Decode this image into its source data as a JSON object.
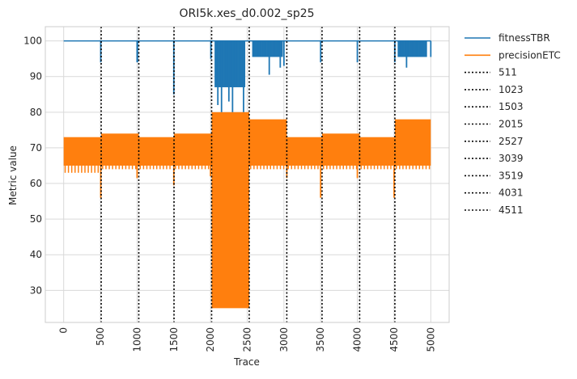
{
  "chart_data": {
    "type": "line",
    "title": "ORI5k.xes_d0.002_sp25",
    "xlabel": "Trace",
    "ylabel": "Metric value",
    "xlim": [
      -250,
      5250
    ],
    "ylim": [
      21,
      104
    ],
    "xticks": [
      0,
      500,
      1000,
      1500,
      2000,
      2500,
      3000,
      3500,
      4000,
      4500,
      5000
    ],
    "yticks": [
      30,
      40,
      50,
      60,
      70,
      80,
      90,
      100
    ],
    "grid": true,
    "legend_position": "outside-right",
    "colors": {
      "fitnessTBR": "#1f77b4",
      "precisionETC": "#ff7f0e",
      "vlines": "#000000"
    },
    "series": [
      {
        "name": "fitnessTBR",
        "segments": [
          {
            "x_range": [
              0,
              511
            ],
            "base": 100,
            "dips": [
              [
                505,
                94
              ]
            ]
          },
          {
            "x_range": [
              511,
              1023
            ],
            "base": 100,
            "dips": [
              [
                1000,
                94
              ],
              [
                1005,
                94
              ]
            ]
          },
          {
            "x_range": [
              1023,
              1503
            ],
            "base": 100,
            "dips": [
              [
                1500,
                85
              ]
            ]
          },
          {
            "x_range": [
              1503,
              2015
            ],
            "base": 100,
            "dips": [
              [
                2005,
                95
              ]
            ]
          },
          {
            "x_range": [
              2015,
              2527
            ],
            "base": 100,
            "dense_band": [
              87,
              100
            ],
            "dips": [
              [
                2100,
                82
              ],
              [
                2150,
                80
              ],
              [
                2250,
                83
              ],
              [
                2300,
                80
              ],
              [
                2450,
                80
              ]
            ]
          },
          {
            "x_range": [
              2527,
              3039
            ],
            "base": 100,
            "dense_band": [
              95.5,
              100
            ],
            "dips": [
              [
                2800,
                90.5
              ],
              [
                2950,
                92.5
              ],
              [
                3000,
                93
              ]
            ]
          },
          {
            "x_range": [
              3039,
              3519
            ],
            "base": 100,
            "dips": [
              [
                3500,
                94
              ]
            ]
          },
          {
            "x_range": [
              3519,
              4031
            ],
            "base": 100,
            "dips": [
              [
                4000,
                94
              ]
            ]
          },
          {
            "x_range": [
              4031,
              4511
            ],
            "base": 100,
            "dips": [
              [
                4510,
                94
              ]
            ]
          },
          {
            "x_range": [
              4511,
              5000
            ],
            "base": 100,
            "dense_band": [
              95.5,
              100
            ],
            "dips": [
              [
                4670,
                92.5
              ],
              [
                5000,
                95.5
              ]
            ]
          }
        ]
      },
      {
        "name": "precisionETC",
        "segments": [
          {
            "x_range": [
              0,
              511
            ],
            "band": [
              65,
              73
            ],
            "low": 63,
            "dips": [
              [
                505,
                56
              ]
            ]
          },
          {
            "x_range": [
              511,
              1023
            ],
            "band": [
              65,
              74
            ],
            "low": 64,
            "dips": [
              [
                1000,
                61.5
              ]
            ]
          },
          {
            "x_range": [
              1023,
              1503
            ],
            "band": [
              65,
              73
            ],
            "low": 64,
            "dips": [
              [
                1500,
                59.5
              ]
            ]
          },
          {
            "x_range": [
              1503,
              2015
            ],
            "band": [
              65,
              74
            ],
            "low": 64,
            "dips": [
              [
                2000,
                62
              ]
            ]
          },
          {
            "x_range": [
              2015,
              2527
            ],
            "band": [
              25,
              80
            ],
            "low": 25,
            "dips": []
          },
          {
            "x_range": [
              2527,
              3039
            ],
            "band": [
              65,
              78
            ],
            "low": 64,
            "dips": [
              [
                3039,
                61.5
              ]
            ]
          },
          {
            "x_range": [
              3039,
              3519
            ],
            "band": [
              65,
              73
            ],
            "low": 64,
            "dips": [
              [
                3500,
                56
              ]
            ]
          },
          {
            "x_range": [
              3519,
              4031
            ],
            "band": [
              65,
              74
            ],
            "low": 64,
            "dips": [
              [
                4000,
                61.5
              ]
            ]
          },
          {
            "x_range": [
              4031,
              4511
            ],
            "band": [
              65,
              73
            ],
            "low": 64,
            "dips": [
              [
                4500,
                56
              ]
            ]
          },
          {
            "x_range": [
              4511,
              5000
            ],
            "band": [
              65,
              78
            ],
            "low": 64,
            "dips": []
          }
        ]
      }
    ],
    "vlines": [
      {
        "name": "511",
        "x": 511
      },
      {
        "name": "1023",
        "x": 1023
      },
      {
        "name": "1503",
        "x": 1503
      },
      {
        "name": "2015",
        "x": 2015
      },
      {
        "name": "2527",
        "x": 2527
      },
      {
        "name": "3039",
        "x": 3039
      },
      {
        "name": "3519",
        "x": 3519
      },
      {
        "name": "4031",
        "x": 4031
      },
      {
        "name": "4511",
        "x": 4511
      }
    ]
  }
}
